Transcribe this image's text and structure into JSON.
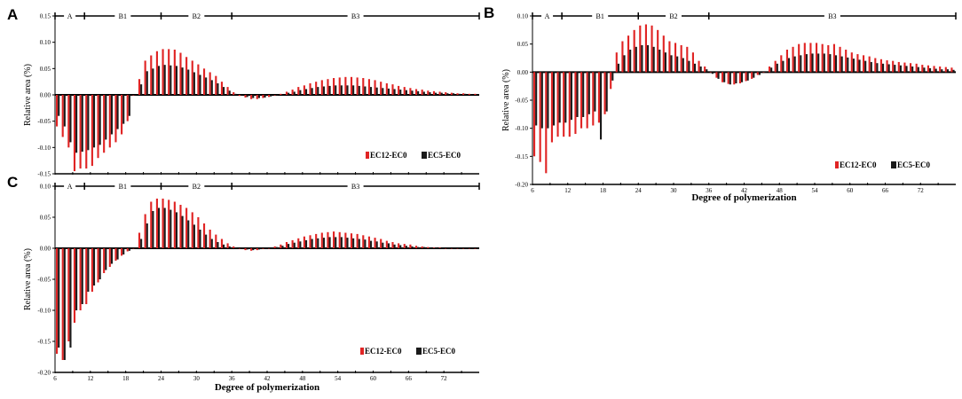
{
  "colors": {
    "ec12": "#e02424",
    "ec5": "#1a1a1a"
  },
  "chart_data": [
    {
      "panel": "A",
      "type": "bar",
      "ylabel": "Relative area (%)",
      "xlabel": "",
      "x_ticks": [],
      "y_ticks": [
        "0.15",
        "0.10",
        "0.05",
        "0.00",
        "-0.05",
        "-0.10",
        "-0.15"
      ],
      "ylim": [
        -0.15,
        0.15
      ],
      "xlim": [
        6,
        78
      ],
      "legend": [
        "EC12-EC0",
        "EC5-EC0"
      ],
      "regions": [
        {
          "label": "A",
          "from": 6,
          "to": 11
        },
        {
          "label": "B1",
          "from": 11,
          "to": 24
        },
        {
          "label": "B2",
          "from": 24,
          "to": 36
        },
        {
          "label": "B3",
          "from": 36,
          "to": 78
        }
      ],
      "series": [
        {
          "name": "EC12-EC0",
          "x": [
            6,
            7,
            8,
            9,
            10,
            11,
            12,
            13,
            14,
            15,
            16,
            17,
            18,
            19,
            20,
            21,
            22,
            23,
            24,
            25,
            26,
            27,
            28,
            29,
            30,
            31,
            32,
            33,
            34,
            35,
            36,
            37,
            38,
            39,
            40,
            41,
            42,
            43,
            44,
            45,
            46,
            47,
            48,
            49,
            50,
            51,
            52,
            53,
            54,
            55,
            56,
            57,
            58,
            59,
            60,
            61,
            62,
            63,
            64,
            65,
            66,
            67,
            68,
            69,
            70,
            71,
            72,
            73,
            74,
            75,
            76,
            77
          ],
          "values": [
            -0.06,
            -0.08,
            -0.1,
            -0.145,
            -0.14,
            -0.14,
            -0.135,
            -0.12,
            -0.11,
            -0.1,
            -0.09,
            -0.075,
            -0.05,
            0.0,
            0.03,
            0.065,
            0.075,
            0.083,
            0.087,
            0.087,
            0.086,
            0.08,
            0.072,
            0.065,
            0.058,
            0.05,
            0.043,
            0.036,
            0.025,
            0.015,
            0.005,
            -0.002,
            -0.005,
            -0.008,
            -0.008,
            -0.006,
            -0.004,
            -0.001,
            0.002,
            0.006,
            0.01,
            0.015,
            0.018,
            0.022,
            0.025,
            0.028,
            0.03,
            0.032,
            0.033,
            0.034,
            0.034,
            0.033,
            0.032,
            0.03,
            0.028,
            0.025,
            0.022,
            0.02,
            0.017,
            0.015,
            0.013,
            0.011,
            0.01,
            0.008,
            0.007,
            0.006,
            0.005,
            0.004,
            0.003,
            0.003,
            0.002,
            0.002
          ]
        },
        {
          "name": "EC5-EC0",
          "x": [
            6,
            7,
            8,
            9,
            10,
            11,
            12,
            13,
            14,
            15,
            16,
            17,
            18,
            19,
            20,
            21,
            22,
            23,
            24,
            25,
            26,
            27,
            28,
            29,
            30,
            31,
            32,
            33,
            34,
            35,
            36,
            37,
            38,
            39,
            40,
            41,
            42,
            43,
            44,
            45,
            46,
            47,
            48,
            49,
            50,
            51,
            52,
            53,
            54,
            55,
            56,
            57,
            58,
            59,
            60,
            61,
            62,
            63,
            64,
            65,
            66,
            67,
            68,
            69,
            70,
            71,
            72,
            73,
            74,
            75,
            76,
            77
          ],
          "values": [
            -0.04,
            -0.06,
            -0.09,
            -0.11,
            -0.108,
            -0.105,
            -0.1,
            -0.095,
            -0.085,
            -0.075,
            -0.065,
            -0.055,
            -0.04,
            0.0,
            0.02,
            0.045,
            0.05,
            0.055,
            0.057,
            0.056,
            0.055,
            0.052,
            0.048,
            0.043,
            0.038,
            0.033,
            0.028,
            0.022,
            0.015,
            0.008,
            0.002,
            -0.001,
            -0.004,
            -0.006,
            -0.006,
            -0.005,
            -0.003,
            -0.001,
            0.001,
            0.004,
            0.006,
            0.009,
            0.011,
            0.013,
            0.015,
            0.016,
            0.017,
            0.018,
            0.018,
            0.018,
            0.018,
            0.017,
            0.016,
            0.015,
            0.014,
            0.013,
            0.012,
            0.011,
            0.01,
            0.009,
            0.008,
            0.007,
            0.006,
            0.005,
            0.004,
            0.004,
            0.003,
            0.003,
            0.002,
            0.002,
            0.001,
            0.001
          ]
        }
      ]
    },
    {
      "panel": "B",
      "type": "bar",
      "ylabel": "Relative area (%)",
      "xlabel": "Degree of polymerization",
      "x_ticks": [
        "6",
        "12",
        "18",
        "24",
        "30",
        "36",
        "42",
        "48",
        "54",
        "60",
        "66",
        "72"
      ],
      "y_ticks": [
        "0.10",
        "0.05",
        "0.00",
        "-0.05",
        "-0.10",
        "-0.15",
        "-0.20"
      ],
      "ylim": [
        -0.2,
        0.1
      ],
      "xlim": [
        6,
        78
      ],
      "legend": [
        "EC12-EC0",
        "EC5-EC0"
      ],
      "regions": [
        {
          "label": "A",
          "from": 6,
          "to": 11
        },
        {
          "label": "B1",
          "from": 11,
          "to": 24
        },
        {
          "label": "B2",
          "from": 24,
          "to": 36
        },
        {
          "label": "B3",
          "from": 36,
          "to": 78
        }
      ],
      "series": [
        {
          "name": "EC12-EC0",
          "x": [
            6,
            7,
            8,
            9,
            10,
            11,
            12,
            13,
            14,
            15,
            16,
            17,
            18,
            19,
            20,
            21,
            22,
            23,
            24,
            25,
            26,
            27,
            28,
            29,
            30,
            31,
            32,
            33,
            34,
            35,
            36,
            37,
            38,
            39,
            40,
            41,
            42,
            43,
            44,
            45,
            46,
            47,
            48,
            49,
            50,
            51,
            52,
            53,
            54,
            55,
            56,
            57,
            58,
            59,
            60,
            61,
            62,
            63,
            64,
            65,
            66,
            67,
            68,
            69,
            70,
            71,
            72,
            73,
            74,
            75,
            76,
            77
          ],
          "values": [
            -0.15,
            -0.16,
            -0.18,
            -0.125,
            -0.115,
            -0.115,
            -0.115,
            -0.11,
            -0.1,
            -0.1,
            -0.095,
            -0.09,
            -0.075,
            -0.03,
            0.035,
            0.055,
            0.065,
            0.075,
            0.083,
            0.085,
            0.083,
            0.075,
            0.065,
            0.055,
            0.052,
            0.048,
            0.045,
            0.035,
            0.02,
            0.01,
            0.0,
            -0.01,
            -0.018,
            -0.021,
            -0.022,
            -0.02,
            -0.016,
            -0.012,
            -0.005,
            0.0,
            0.01,
            0.02,
            0.03,
            0.04,
            0.045,
            0.05,
            0.052,
            0.052,
            0.052,
            0.05,
            0.048,
            0.05,
            0.045,
            0.04,
            0.035,
            0.032,
            0.03,
            0.028,
            0.025,
            0.023,
            0.021,
            0.02,
            0.018,
            0.017,
            0.016,
            0.015,
            0.013,
            0.012,
            0.011,
            0.01,
            0.009,
            0.008
          ]
        },
        {
          "name": "EC5-EC0",
          "x": [
            6,
            7,
            8,
            9,
            10,
            11,
            12,
            13,
            14,
            15,
            16,
            17,
            18,
            19,
            20,
            21,
            22,
            23,
            24,
            25,
            26,
            27,
            28,
            29,
            30,
            31,
            32,
            33,
            34,
            35,
            36,
            37,
            38,
            39,
            40,
            41,
            42,
            43,
            44,
            45,
            46,
            47,
            48,
            49,
            50,
            51,
            52,
            53,
            54,
            55,
            56,
            57,
            58,
            59,
            60,
            61,
            62,
            63,
            64,
            65,
            66,
            67,
            68,
            69,
            70,
            71,
            72,
            73,
            74,
            75,
            76,
            77
          ],
          "values": [
            -0.095,
            -0.1,
            -0.1,
            -0.095,
            -0.09,
            -0.09,
            -0.085,
            -0.08,
            -0.08,
            -0.075,
            -0.07,
            -0.12,
            -0.07,
            -0.015,
            0.015,
            0.03,
            0.04,
            0.045,
            0.048,
            0.048,
            0.045,
            0.04,
            0.035,
            0.03,
            0.028,
            0.025,
            0.02,
            0.015,
            0.01,
            0.005,
            -0.003,
            -0.012,
            -0.018,
            -0.022,
            -0.02,
            -0.018,
            -0.015,
            -0.01,
            -0.005,
            0.0,
            0.008,
            0.015,
            0.02,
            0.025,
            0.028,
            0.03,
            0.032,
            0.033,
            0.033,
            0.033,
            0.032,
            0.03,
            0.028,
            0.026,
            0.024,
            0.022,
            0.02,
            0.018,
            0.016,
            0.015,
            0.014,
            0.013,
            0.012,
            0.011,
            0.01,
            0.009,
            0.008,
            0.007,
            0.006,
            0.005,
            0.005,
            0.004
          ]
        }
      ]
    },
    {
      "panel": "C",
      "type": "bar",
      "ylabel": "Relative area (%)",
      "xlabel": "Degree of polymerization",
      "x_ticks": [
        "6",
        "12",
        "18",
        "24",
        "30",
        "36",
        "42",
        "48",
        "54",
        "60",
        "66",
        "72"
      ],
      "y_ticks": [
        "0.10",
        "0.05",
        "0.00",
        "-0.05",
        "-0.10",
        "-0.15",
        "-0.20"
      ],
      "ylim": [
        -0.2,
        0.1
      ],
      "xlim": [
        6,
        78
      ],
      "legend": [
        "EC12-EC0",
        "EC5-EC0"
      ],
      "regions": [
        {
          "label": "A",
          "from": 6,
          "to": 11
        },
        {
          "label": "B1",
          "from": 11,
          "to": 24
        },
        {
          "label": "B2",
          "from": 24,
          "to": 36
        },
        {
          "label": "B3",
          "from": 36,
          "to": 78
        }
      ],
      "series": [
        {
          "name": "EC12-EC0",
          "x": [
            6,
            7,
            8,
            9,
            10,
            11,
            12,
            13,
            14,
            15,
            16,
            17,
            18,
            19,
            20,
            21,
            22,
            23,
            24,
            25,
            26,
            27,
            28,
            29,
            30,
            31,
            32,
            33,
            34,
            35,
            36,
            37,
            38,
            39,
            40,
            41,
            42,
            43,
            44,
            45,
            46,
            47,
            48,
            49,
            50,
            51,
            52,
            53,
            54,
            55,
            56,
            57,
            58,
            59,
            60,
            61,
            62,
            63,
            64,
            65,
            66,
            67,
            68,
            69,
            70,
            71,
            72,
            73,
            74,
            75,
            76,
            77
          ],
          "values": [
            -0.17,
            -0.18,
            -0.15,
            -0.12,
            -0.1,
            -0.09,
            -0.07,
            -0.055,
            -0.04,
            -0.03,
            -0.02,
            -0.012,
            -0.005,
            0.0,
            0.025,
            0.055,
            0.075,
            0.08,
            0.08,
            0.078,
            0.075,
            0.07,
            0.065,
            0.058,
            0.05,
            0.04,
            0.03,
            0.022,
            0.015,
            0.008,
            0.003,
            0.0,
            -0.003,
            -0.004,
            -0.003,
            -0.001,
            0.0,
            0.003,
            0.006,
            0.01,
            0.013,
            0.016,
            0.019,
            0.021,
            0.023,
            0.025,
            0.026,
            0.027,
            0.026,
            0.025,
            0.024,
            0.023,
            0.021,
            0.019,
            0.017,
            0.015,
            0.012,
            0.01,
            0.008,
            0.007,
            0.006,
            0.004,
            0.003,
            0.002,
            0.001,
            0.001,
            0.0,
            0.0,
            0.0,
            0.0,
            0.0,
            0.0
          ]
        },
        {
          "name": "EC5-EC0",
          "x": [
            6,
            7,
            8,
            9,
            10,
            11,
            12,
            13,
            14,
            15,
            16,
            17,
            18,
            19,
            20,
            21,
            22,
            23,
            24,
            25,
            26,
            27,
            28,
            29,
            30,
            31,
            32,
            33,
            34,
            35,
            36,
            37,
            38,
            39,
            40,
            41,
            42,
            43,
            44,
            45,
            46,
            47,
            48,
            49,
            50,
            51,
            52,
            53,
            54,
            55,
            56,
            57,
            58,
            59,
            60,
            61,
            62,
            63,
            64,
            65,
            66,
            67,
            68,
            69,
            70,
            71,
            72,
            73,
            74,
            75,
            76,
            77
          ],
          "values": [
            -0.16,
            -0.18,
            -0.16,
            -0.1,
            -0.09,
            -0.07,
            -0.06,
            -0.05,
            -0.035,
            -0.025,
            -0.018,
            -0.01,
            -0.004,
            0.0,
            0.015,
            0.04,
            0.06,
            0.065,
            0.065,
            0.062,
            0.058,
            0.052,
            0.045,
            0.038,
            0.03,
            0.022,
            0.015,
            0.01,
            0.006,
            0.003,
            0.001,
            0.0,
            -0.002,
            -0.003,
            -0.002,
            -0.001,
            0.0,
            0.002,
            0.004,
            0.007,
            0.009,
            0.011,
            0.013,
            0.015,
            0.016,
            0.017,
            0.018,
            0.018,
            0.018,
            0.017,
            0.016,
            0.015,
            0.014,
            0.012,
            0.011,
            0.009,
            0.008,
            0.006,
            0.005,
            0.004,
            0.003,
            0.002,
            0.002,
            0.001,
            0.001,
            0.0,
            0.0,
            0.0,
            0.0,
            0.0,
            0.0,
            0.0
          ]
        }
      ]
    }
  ]
}
